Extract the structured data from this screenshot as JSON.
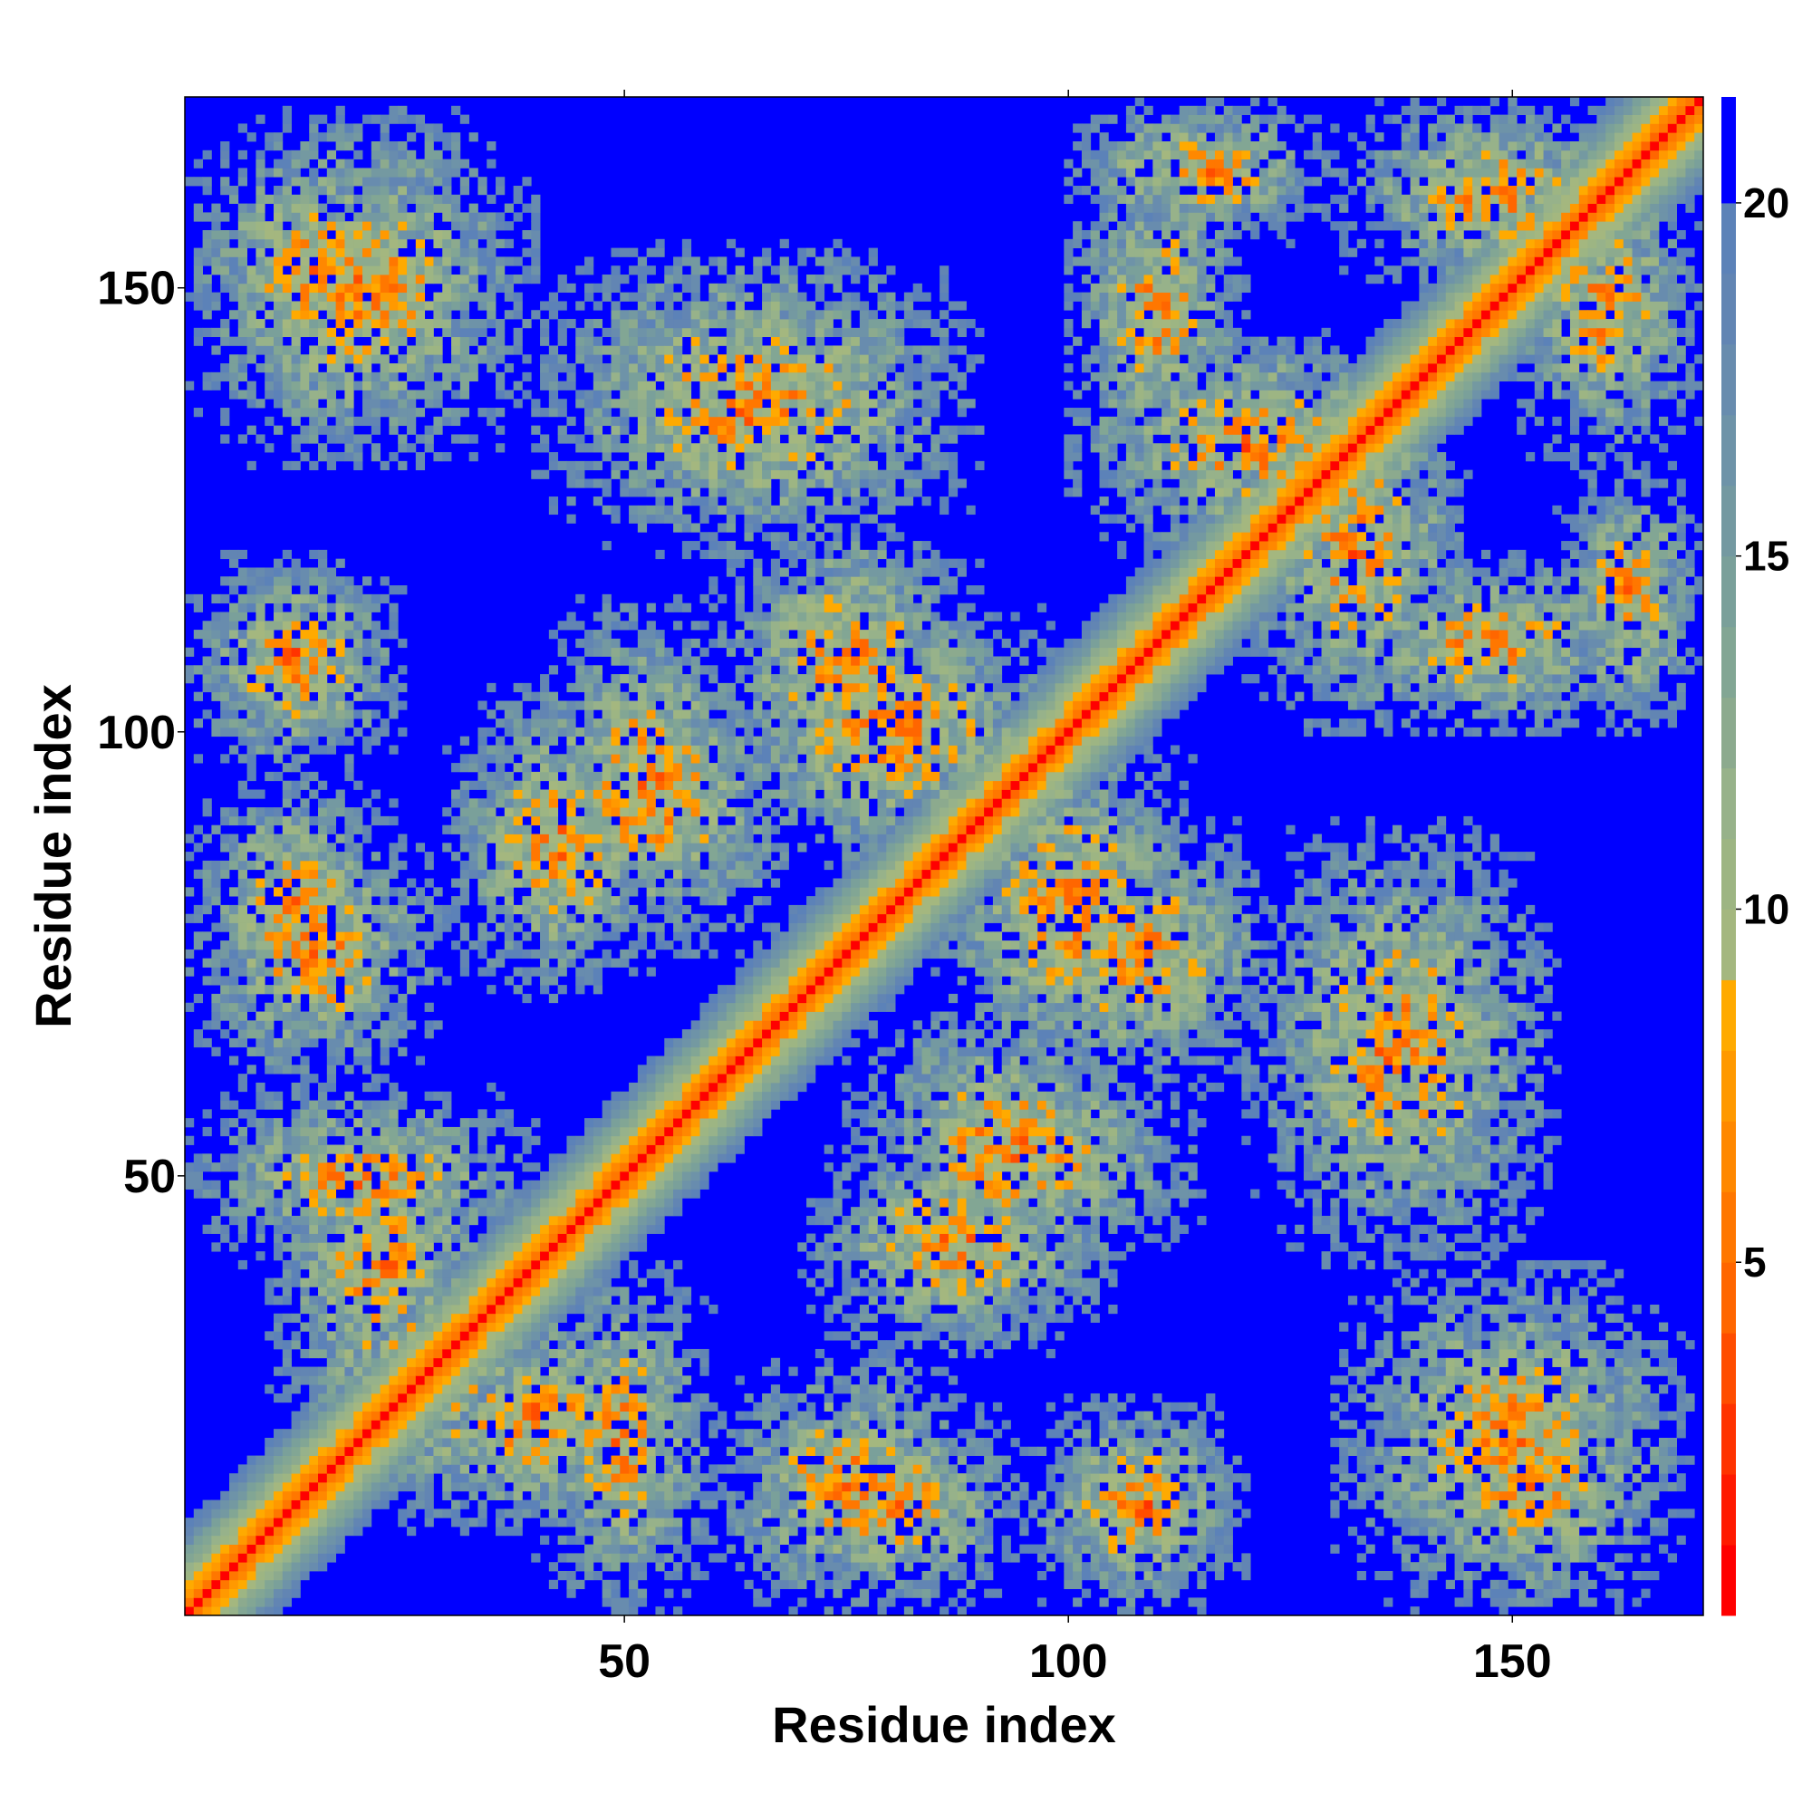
{
  "chart_data": {
    "type": "heatmap",
    "title": "",
    "xlabel": "Residue index",
    "ylabel": "Residue index",
    "n_residues": 171,
    "xlim": [
      1,
      171
    ],
    "ylim": [
      1,
      171
    ],
    "x_ticks": [
      50,
      100,
      150
    ],
    "y_ticks": [
      50,
      100,
      150
    ],
    "colorbar": {
      "range": [
        0,
        21.5
      ],
      "ticks": [
        5,
        10,
        15,
        20
      ],
      "levels": [
        {
          "lo": 0,
          "hi": 1,
          "color": "#ff0000"
        },
        {
          "lo": 1,
          "hi": 2,
          "color": "#ff1a00"
        },
        {
          "lo": 2,
          "hi": 3,
          "color": "#ff3300"
        },
        {
          "lo": 3,
          "hi": 4,
          "color": "#ff4d00"
        },
        {
          "lo": 4,
          "hi": 5,
          "color": "#ff6600"
        },
        {
          "lo": 5,
          "hi": 6,
          "color": "#ff7700"
        },
        {
          "lo": 6,
          "hi": 7,
          "color": "#ff8800"
        },
        {
          "lo": 7,
          "hi": 8,
          "color": "#ff9900"
        },
        {
          "lo": 8,
          "hi": 9,
          "color": "#ffaa00"
        },
        {
          "lo": 9,
          "hi": 10,
          "color": "#a4b77f"
        },
        {
          "lo": 10,
          "hi": 11,
          "color": "#9db583"
        },
        {
          "lo": 11,
          "hi": 12,
          "color": "#97b28a"
        },
        {
          "lo": 12,
          "hi": 13,
          "color": "#8caa8e"
        },
        {
          "lo": 13,
          "hi": 14,
          "color": "#82a694"
        },
        {
          "lo": 14,
          "hi": 15,
          "color": "#7aa09a"
        },
        {
          "lo": 15,
          "hi": 16,
          "color": "#7499a1"
        },
        {
          "lo": 16,
          "hi": 17,
          "color": "#6e93a8"
        },
        {
          "lo": 17,
          "hi": 18,
          "color": "#688cae"
        },
        {
          "lo": 18,
          "hi": 19,
          "color": "#6285b3"
        },
        {
          "lo": 19,
          "hi": 20,
          "color": "#5c82b8"
        },
        {
          "lo": 20,
          "hi": 21.5,
          "color": "#0000ff"
        }
      ]
    },
    "matrix_description": "Residue–residue distance map (Å), symmetric, diagonal distance 0, values >20 shown blue",
    "contact_blocks": [
      {
        "x": [
          1,
          30
        ],
        "y": [
          135,
          168
        ]
      },
      {
        "x": [
          40,
          90
        ],
        "y": [
          120,
          155
        ]
      },
      {
        "x": [
          100,
          130
        ],
        "y": [
          155,
          171
        ]
      },
      {
        "x": [
          130,
          165
        ],
        "y": [
          150,
          171
        ]
      },
      {
        "x": [
          100,
          140
        ],
        "y": [
          120,
          145
        ]
      },
      {
        "x": [
          1,
          25
        ],
        "y": [
          100,
          118
        ]
      },
      {
        "x": [
          1,
          25
        ],
        "y": [
          65,
          95
        ]
      },
      {
        "x": [
          35,
          70
        ],
        "y": [
          75,
          110
        ]
      },
      {
        "x": [
          60,
          100
        ],
        "y": [
          85,
          115
        ]
      },
      {
        "x": [
          130,
          165
        ],
        "y": [
          100,
          120
        ]
      },
      {
        "x": [
          90,
          125
        ],
        "y": [
          60,
          90
        ]
      },
      {
        "x": [
          125,
          145
        ],
        "y": [
          50,
          75
        ]
      },
      {
        "x": [
          1,
          40
        ],
        "y": [
          40,
          60
        ]
      },
      {
        "x": [
          20,
          60
        ],
        "y": [
          10,
          35
        ]
      },
      {
        "x": [
          60,
          90
        ],
        "y": [
          1,
          30
        ]
      },
      {
        "x": [
          95,
          120
        ],
        "y": [
          1,
          25
        ]
      },
      {
        "x": [
          130,
          170
        ],
        "y": [
          1,
          40
        ]
      },
      {
        "x": [
          70,
          105
        ],
        "y": [
          30,
          55
        ]
      },
      {
        "x": [
          75,
          115
        ],
        "y": [
          40,
          65
        ]
      }
    ]
  }
}
